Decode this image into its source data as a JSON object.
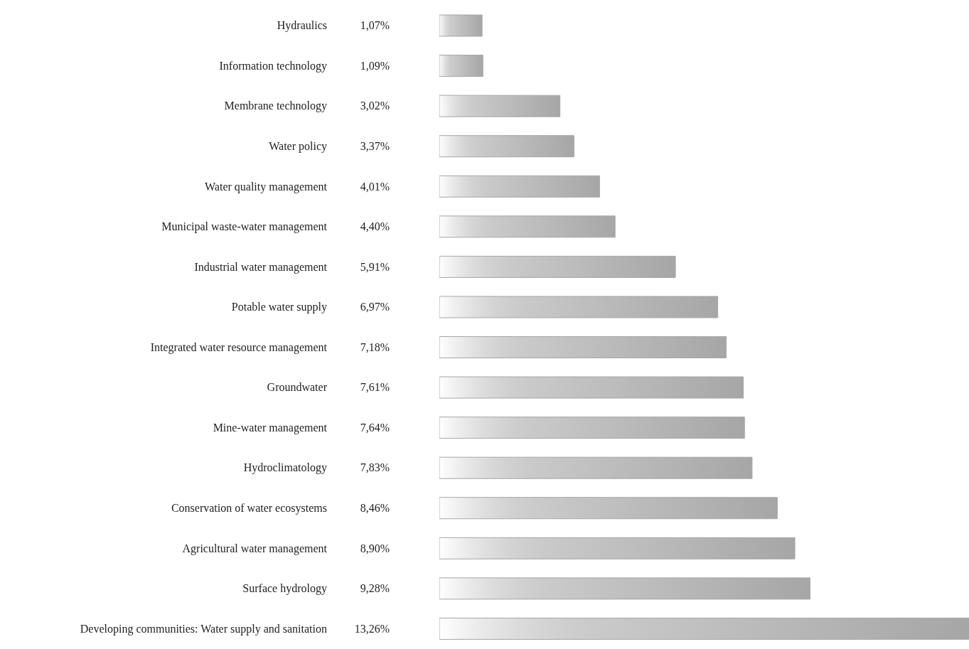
{
  "chart_data": {
    "type": "bar",
    "orientation": "horizontal",
    "categories": [
      "Hydraulics",
      "Information technology",
      "Membrane technology",
      "Water policy",
      "Water quality management",
      "Municipal waste-water management",
      "Industrial water management",
      "Potable water supply",
      "Integrated water resource management",
      "Groundwater",
      "Mine-water management",
      "Hydroclimatology",
      "Conservation of water ecosystems",
      "Agricultural water management",
      "Surface hydrology",
      "Developing communities: Water supply and sanitation"
    ],
    "values": [
      1.07,
      1.09,
      3.02,
      3.37,
      4.01,
      4.4,
      5.91,
      6.97,
      7.18,
      7.61,
      7.64,
      7.83,
      8.46,
      8.9,
      9.28,
      13.26
    ],
    "value_labels": [
      "1,07%",
      "1,09%",
      "3,02%",
      "3,37%",
      "4,01%",
      "4,40%",
      "5,91%",
      "6,97%",
      "7,18%",
      "7,61%",
      "7,64%",
      "7,83%",
      "8,46%",
      "8,90%",
      "9,28%",
      "13,26%"
    ],
    "color": "#a6a6a6"
  }
}
